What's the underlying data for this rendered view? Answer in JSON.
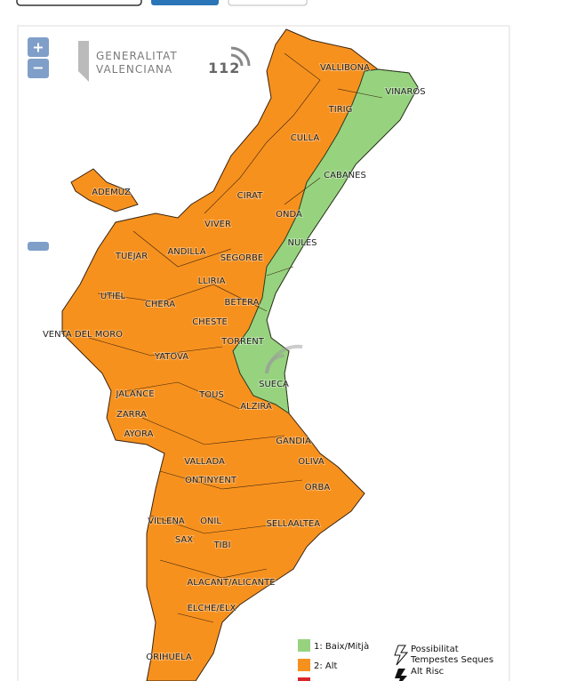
{
  "controls": {
    "zoom_in": "+",
    "zoom_out": "−"
  },
  "logo": {
    "line1": "GENERALITAT",
    "line2": "VALENCIANA",
    "emergency": "112"
  },
  "towns": [
    "VALLIBONA",
    "VINAROS",
    "TIRIG",
    "CULLA",
    "CABANES",
    "ADEMUZ",
    "CIRAT",
    "ONDA",
    "VIVER",
    "TUEJAR",
    "ANDILLA",
    "SEGORBE",
    "NULES",
    "LLIRIA",
    "UTIEL",
    "CHERA",
    "BETERA",
    "CHESTE",
    "VENTA DEL MORO",
    "TORRENT",
    "YATOVA",
    "SUECA",
    "JALANCE",
    "TOUS",
    "ALZIRA",
    "ZARRA",
    "AYORA",
    "GANDIA",
    "OLIVA",
    "VALLADA",
    "ONTINYENT",
    "ORBA",
    "VILLENA",
    "ONIL",
    "SELLA",
    "ALTEA",
    "SAX",
    "TIBI",
    "ALACANT/ALICANTE",
    "ELCHE/ELX",
    "ORIHUELA"
  ],
  "legend": {
    "levels": [
      "1: Baix/Mitjà",
      "2: Alt"
    ],
    "storm_possible": [
      "Possibilitat",
      "Tempestes Seques"
    ],
    "storm_high": [
      "Alt Risc"
    ]
  }
}
